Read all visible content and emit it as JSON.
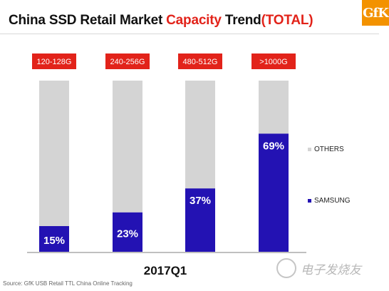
{
  "header": {
    "title_part1": "China SSD Retail Market ",
    "title_accent": "Capacity",
    "title_part2": " Trend",
    "title_accent2": "(TOTAL)"
  },
  "logo_text": "GfK",
  "source_text": "Source: GfK USB Retail TTL China Online Tracking",
  "watermark_text": "电子发烧友",
  "colors": {
    "samsung": "#2312b3",
    "others": "#d4d4d4",
    "label_box": "#e2231a",
    "accent": "#e2231a"
  },
  "chart_data": {
    "type": "bar",
    "stacked": true,
    "normalized": true,
    "categories": [
      "120-128G",
      "240-256G",
      "480-512G",
      ">1000G"
    ],
    "series": [
      {
        "name": "SAMSUNG",
        "values": [
          15,
          23,
          37,
          69
        ],
        "color": "#2312b3"
      },
      {
        "name": "OTHERS",
        "values": [
          85,
          77,
          63,
          31
        ],
        "color": "#d4d4d4"
      }
    ],
    "data_labels": [
      "15%",
      "23%",
      "37%",
      "69%"
    ],
    "xlabel": "2017Q1",
    "ylim": [
      0,
      100
    ],
    "grid": false,
    "legend": {
      "position": "right",
      "entries": [
        "OTHERS",
        "SAMSUNG"
      ]
    }
  }
}
